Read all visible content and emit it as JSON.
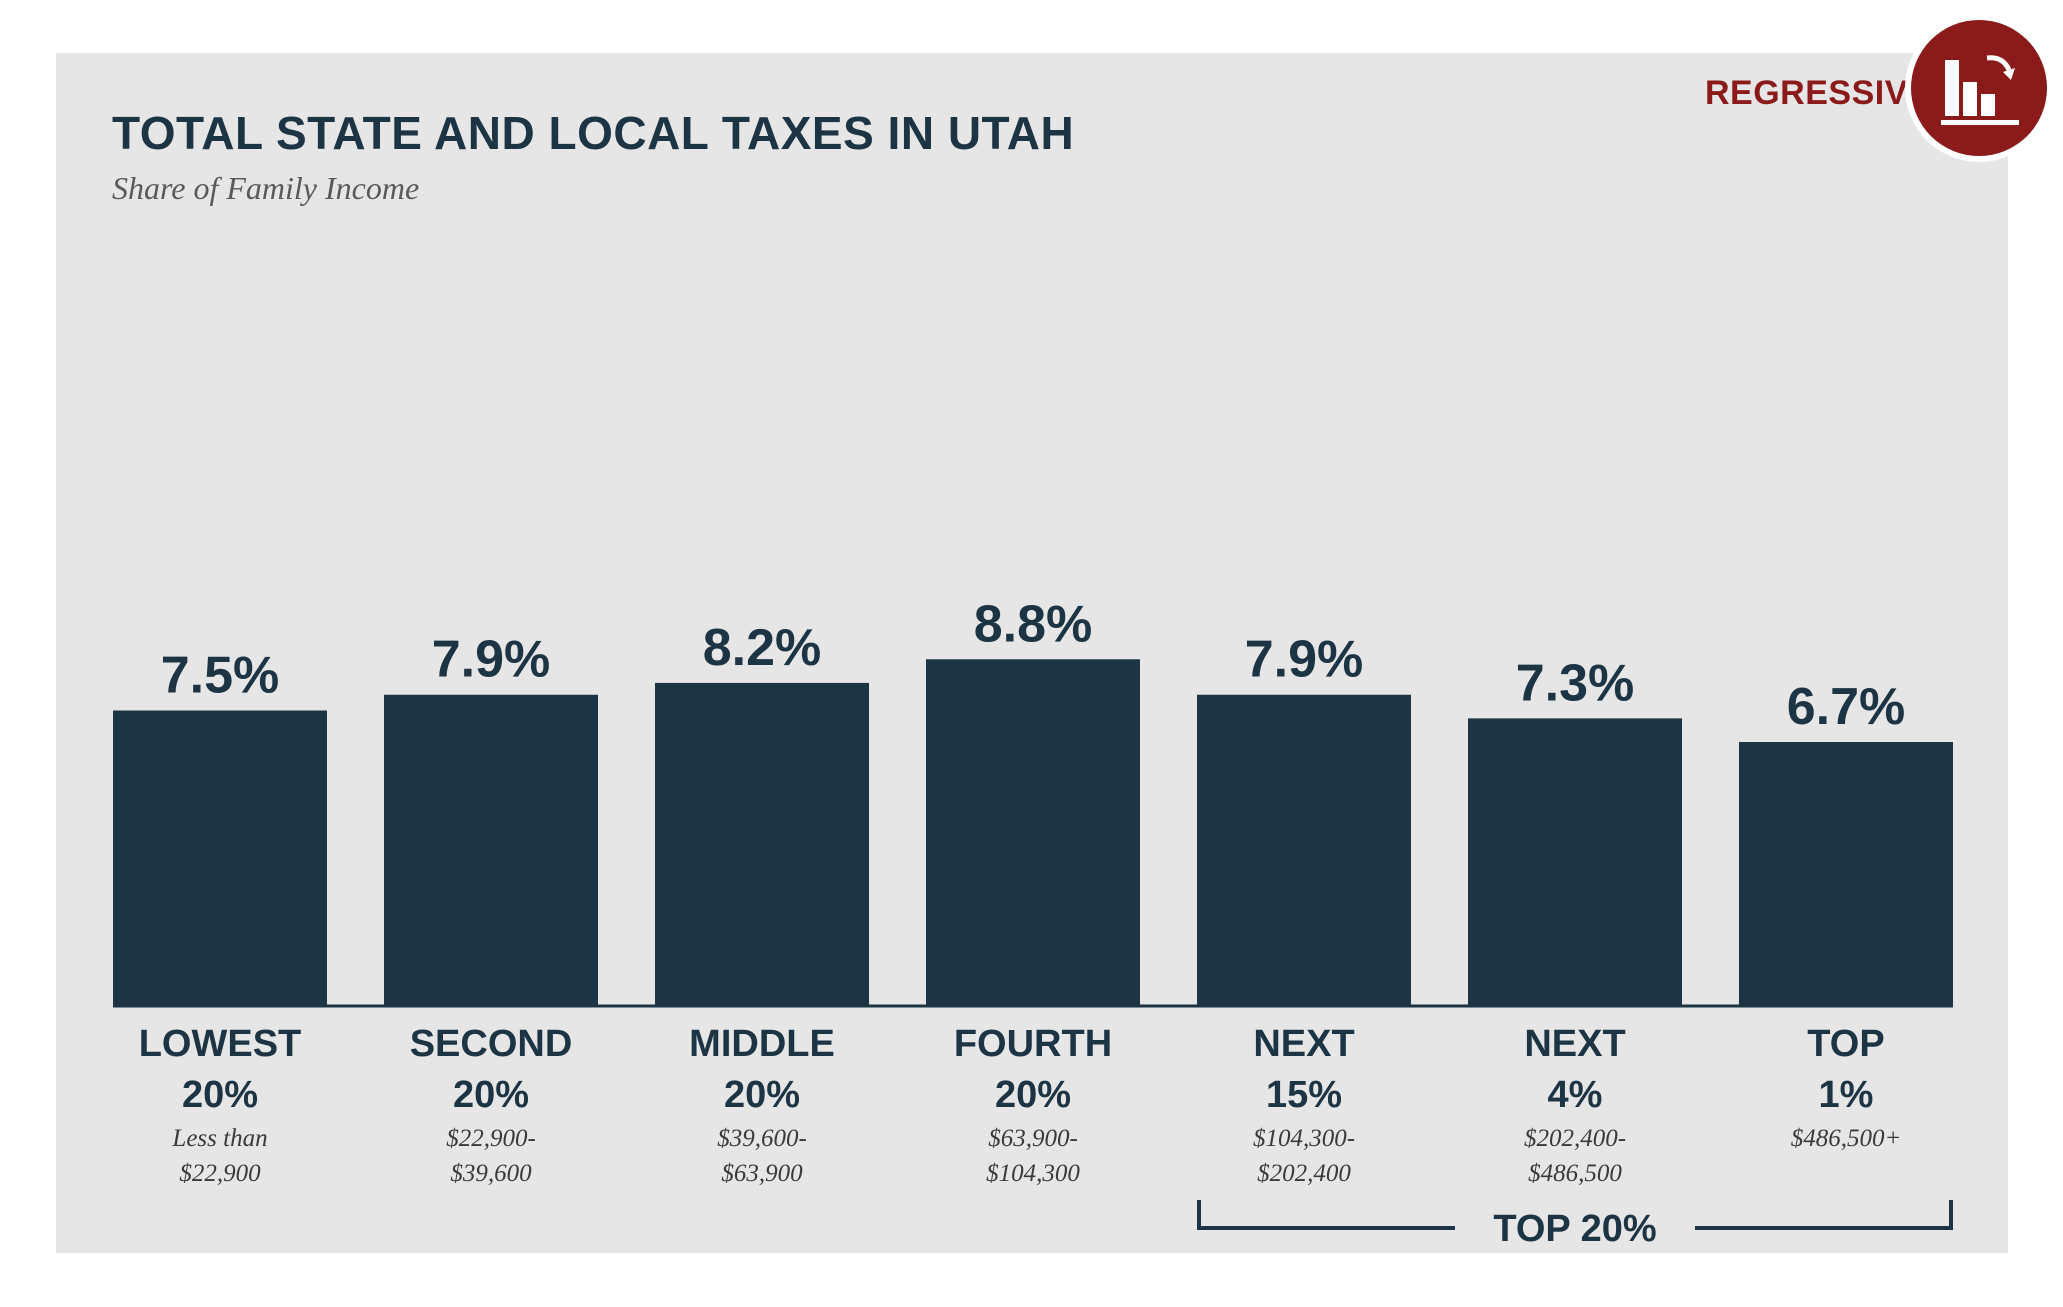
{
  "header": {
    "title": "TOTAL STATE AND LOCAL TAXES IN UTAH",
    "subtitle": "Share of Family Income"
  },
  "badge": {
    "label": "REGRESSIVE",
    "icon": "regressive-bar-chart-icon",
    "color": "#8b1a1a"
  },
  "colors": {
    "bar": "#1c3443",
    "panel": "#e6e6e6"
  },
  "chart_data": {
    "type": "bar",
    "title": "TOTAL STATE AND LOCAL TAXES IN UTAH",
    "subtitle": "Share of Family Income",
    "xlabel": "",
    "ylabel": "",
    "categories": [
      {
        "group": "LOWEST",
        "pct": "20%",
        "range1": "Less than",
        "range2": "$22,900"
      },
      {
        "group": "SECOND",
        "pct": "20%",
        "range1": "$22,900-",
        "range2": "$39,600"
      },
      {
        "group": "MIDDLE",
        "pct": "20%",
        "range1": "$39,600-",
        "range2": "$63,900"
      },
      {
        "group": "FOURTH",
        "pct": "20%",
        "range1": "$63,900-",
        "range2": "$104,300"
      },
      {
        "group": "NEXT",
        "pct": "15%",
        "range1": "$104,300-",
        "range2": "$202,400"
      },
      {
        "group": "NEXT",
        "pct": "4%",
        "range1": "$202,400-",
        "range2": "$486,500"
      },
      {
        "group": "TOP",
        "pct": "1%",
        "range1": "$486,500+",
        "range2": ""
      }
    ],
    "values": [
      7.5,
      7.9,
      8.2,
      8.8,
      7.9,
      7.3,
      6.7
    ],
    "value_labels": [
      "7.5%",
      "7.9%",
      "8.2%",
      "8.8%",
      "7.9%",
      "7.3%",
      "6.7%"
    ],
    "grid": false,
    "bracket": {
      "label": "TOP 20%",
      "from_index": 4,
      "to_index": 6
    }
  }
}
